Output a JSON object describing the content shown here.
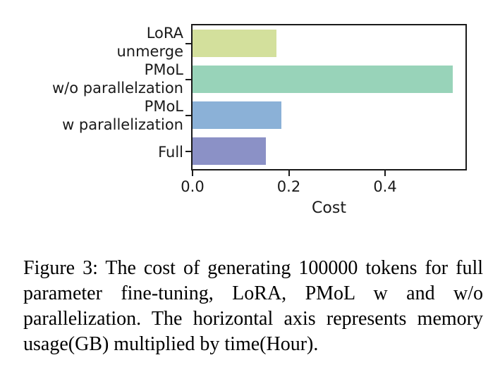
{
  "figure": {
    "caption": "Figure 3: The cost of generating 100000 tokens for full parameter fine-tuning, LoRA, PMoL w and w/o parallelization. The horizontal axis represents memory usage(GB) multiplied by time(Hour)."
  },
  "chart_data": {
    "type": "bar",
    "orientation": "horizontal",
    "title": "",
    "categories": [
      "LoRA\nunmerge",
      "PMoL\nw/o parallelzation",
      "PMoL\nw parallelization",
      "Full"
    ],
    "values": [
      0.175,
      0.54,
      0.185,
      0.152
    ],
    "xlabel": "Cost",
    "ylabel": "",
    "xlim": [
      0,
      0.567
    ],
    "xticks": [
      0,
      0.2,
      0.4
    ],
    "xtick_labels": [
      "0.0",
      "0.2",
      "0.4"
    ],
    "bar_colors": [
      "#d3e09c",
      "#98d3b9",
      "#8bb1d7",
      "#8b91c6"
    ],
    "grid": false,
    "legend_position": "none",
    "axis_color": "#1a1a1a"
  }
}
